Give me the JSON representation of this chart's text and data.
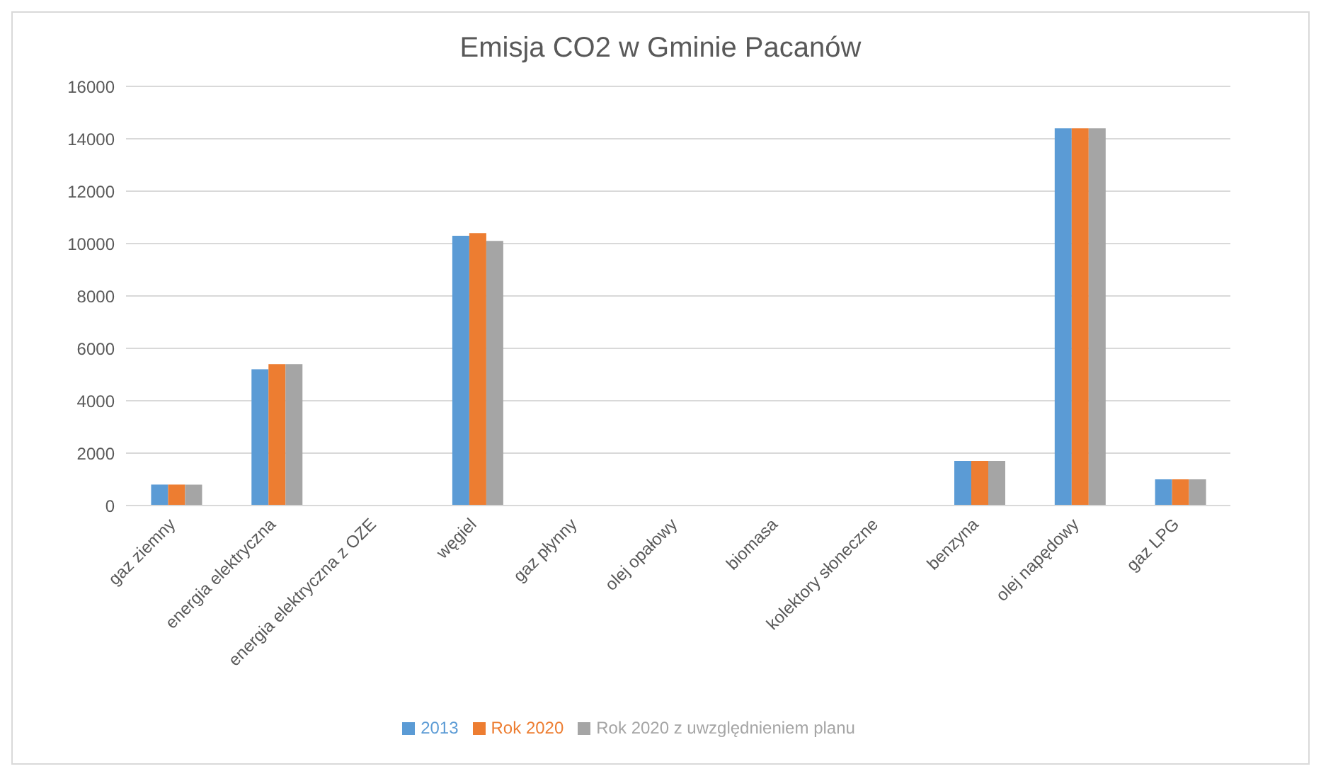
{
  "chart_data": {
    "type": "bar",
    "title": "Emisja CO2 w Gminie Pacanów",
    "categories": [
      "gaz ziemny",
      "energia elektryczna",
      "energia elektryczna z OZE",
      "węgiel",
      "gaz płynny",
      "olej opałowy",
      "biomasa",
      "kolektory słoneczne",
      "benzyna",
      "olej napędowy",
      "gaz LPG"
    ],
    "series": [
      {
        "name": "2013",
        "color": "#5b9bd5",
        "values": [
          800,
          5200,
          0,
          10300,
          0,
          0,
          0,
          0,
          1700,
          14400,
          1000
        ]
      },
      {
        "name": "Rok 2020",
        "color": "#ed7d31",
        "values": [
          800,
          5400,
          0,
          10400,
          0,
          0,
          0,
          0,
          1700,
          14400,
          1000
        ]
      },
      {
        "name": "Rok 2020 z uwzględnieniem planu",
        "color": "#a5a5a5",
        "values": [
          800,
          5400,
          0,
          10100,
          0,
          0,
          0,
          0,
          1700,
          14400,
          1000
        ]
      }
    ],
    "ylim": [
      0,
      16000
    ],
    "yticks": [
      0,
      2000,
      4000,
      6000,
      8000,
      10000,
      12000,
      14000,
      16000
    ],
    "grid": "y",
    "legend": "bottom"
  }
}
